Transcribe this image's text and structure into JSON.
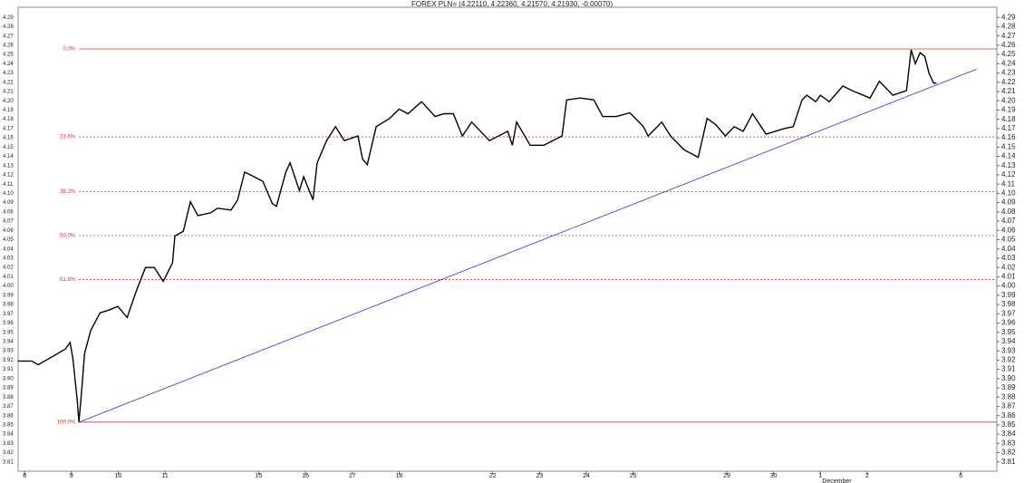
{
  "chart_data": {
    "type": "line",
    "title": "FOREX PLN= (4.22110, 4.22360, 4.21570, 4.21930, -0.00070)",
    "x": [
      -0.14,
      0.15,
      0.29,
      0.6,
      0.87,
      0.97,
      1.03,
      1.12,
      1.16,
      1.22,
      1.28,
      1.41,
      1.61,
      1.8,
      1.99,
      2.19,
      2.38,
      2.58,
      2.77,
      2.96,
      3.16,
      3.21,
      3.39,
      3.54,
      3.7,
      3.97,
      4.12,
      4.41,
      4.55,
      4.7,
      4.9,
      5.09,
      5.29,
      5.38,
      5.58,
      5.67,
      5.87,
      5.96,
      6.16,
      6.25,
      6.45,
      6.64,
      6.83,
      7.12,
      7.22,
      7.32,
      7.51,
      7.8,
      8.0,
      8.19,
      8.48,
      8.77,
      8.96,
      9.16,
      9.35,
      9.55,
      9.93,
      10.32,
      10.42,
      10.51,
      10.8,
      11.09,
      11.48,
      11.58,
      11.87,
      12.16,
      12.35,
      12.64,
      12.93,
      13.22,
      13.32,
      13.61,
      13.8,
      14.09,
      14.39,
      14.58,
      14.77,
      14.97,
      15.16,
      15.35,
      15.55,
      15.84,
      16.22,
      16.42,
      16.61,
      16.71,
      16.9,
      17.0,
      17.19,
      17.48,
      17.68,
      18.06,
      18.26,
      18.55,
      18.84,
      18.94,
      19.03,
      19.13,
      19.23,
      19.32,
      19.42,
      19.48
    ],
    "series": [
      {
        "name": "PLN=",
        "color": "#000000",
        "values": [
          3.919,
          3.919,
          3.915,
          3.924,
          3.932,
          3.939,
          3.922,
          3.878,
          3.853,
          3.888,
          3.927,
          3.952,
          3.971,
          3.974,
          3.978,
          3.966,
          3.994,
          4.02,
          4.02,
          4.005,
          4.025,
          4.054,
          4.059,
          4.091,
          4.076,
          4.079,
          4.084,
          4.082,
          4.093,
          4.123,
          4.118,
          4.113,
          4.089,
          4.086,
          4.123,
          4.133,
          4.103,
          4.118,
          4.093,
          4.133,
          4.157,
          4.172,
          4.157,
          4.162,
          4.137,
          4.131,
          4.172,
          4.181,
          4.191,
          4.186,
          4.199,
          4.183,
          4.186,
          4.186,
          4.162,
          4.177,
          4.157,
          4.167,
          4.152,
          4.177,
          4.152,
          4.152,
          4.162,
          4.201,
          4.203,
          4.201,
          4.183,
          4.183,
          4.187,
          4.172,
          4.162,
          4.177,
          4.162,
          4.147,
          4.139,
          4.181,
          4.174,
          4.162,
          4.172,
          4.167,
          4.186,
          4.164,
          4.17,
          4.172,
          4.201,
          4.206,
          4.199,
          4.206,
          4.199,
          4.216,
          4.211,
          4.203,
          4.221,
          4.206,
          4.211,
          4.255,
          4.24,
          4.252,
          4.248,
          4.23,
          4.219,
          4.219
        ]
      }
    ],
    "trendline": {
      "color": "#3030e0",
      "x": [
        1.16,
        20.33
      ],
      "values": [
        3.853,
        4.234
      ]
    },
    "fib_levels": {
      "color": "#e03030",
      "start": 1.16,
      "levels": [
        {
          "label": "0.0%",
          "value": 4.256
        },
        {
          "label": "23.6%",
          "value": 4.161
        },
        {
          "label": "38.2%",
          "value": 4.102
        },
        {
          "label": "50.0%",
          "value": 4.0545
        },
        {
          "label": "61.8%",
          "value": 4.007
        },
        {
          "label": "100.0%",
          "value": 3.853
        }
      ]
    },
    "xlim": [
      -0.14,
      20.77
    ],
    "xticks": [
      {
        "value": 0,
        "label": "8"
      },
      {
        "value": 1,
        "label": "9"
      },
      {
        "value": 2,
        "label": "10"
      },
      {
        "value": 3,
        "label": "11"
      },
      {
        "value": 5,
        "label": "15"
      },
      {
        "value": 6,
        "label": "16"
      },
      {
        "value": 7,
        "label": "17"
      },
      {
        "value": 8,
        "label": "18"
      },
      {
        "value": 10,
        "label": "22"
      },
      {
        "value": 11,
        "label": "23"
      },
      {
        "value": 12,
        "label": "24"
      },
      {
        "value": 13,
        "label": "25"
      },
      {
        "value": 15,
        "label": "29"
      },
      {
        "value": 16,
        "label": "30"
      },
      {
        "value": 17,
        "label": "1"
      },
      {
        "value": 18,
        "label": "2"
      },
      {
        "value": 20,
        "label": "6"
      }
    ],
    "x_annotation": {
      "value": 17,
      "label": "December"
    },
    "ylim": [
      3.8,
      4.301
    ],
    "yticks": [
      3.81,
      3.82,
      3.83,
      3.84,
      3.85,
      3.86,
      3.87,
      3.88,
      3.89,
      {
        "value": 3.9,
        "label": "3.90"
      },
      3.91,
      3.92,
      3.93,
      3.94,
      3.95,
      3.96,
      3.97,
      3.98,
      3.99,
      {
        "value": 4,
        "label": "4.00"
      },
      4.01,
      4.02,
      4.03,
      4.04,
      4.05,
      4.06,
      4.07,
      4.08,
      4.09,
      {
        "value": 4.1,
        "label": "4.10"
      },
      4.11,
      4.12,
      4.13,
      4.14,
      4.15,
      4.16,
      4.17,
      4.18,
      4.19,
      {
        "value": 4.2,
        "label": "4.20"
      },
      4.21,
      4.22,
      4.23,
      4.24,
      4.25,
      4.26,
      4.27,
      4.28,
      4.29
    ]
  }
}
